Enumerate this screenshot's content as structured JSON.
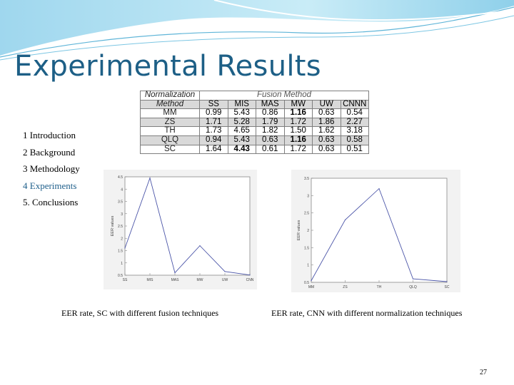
{
  "slide": {
    "title": "Experimental Results",
    "page_number": "27"
  },
  "outline": [
    {
      "label": "1 Introduction",
      "active": false
    },
    {
      "label": "2 Background",
      "active": false
    },
    {
      "label": "3 Methodology",
      "active": false
    },
    {
      "label": "4 Experiments",
      "active": true
    },
    {
      "label": "5. Conclusions",
      "active": false
    }
  ],
  "table": {
    "corner_top": "Normalization",
    "corner_bottom": "Method",
    "group_header": "Fusion Method",
    "columns": [
      "SS",
      "MIS",
      "MAS",
      "MW",
      "UW",
      "CNNN"
    ],
    "rows": [
      {
        "method": "MM",
        "values": [
          "0.99",
          "5.43",
          "0.86",
          "1.16",
          "0.63",
          "0.54"
        ],
        "bold": [
          false,
          false,
          false,
          true,
          false,
          false
        ]
      },
      {
        "method": "ZS",
        "values": [
          "1.71",
          "5.28",
          "1.79",
          "1.72",
          "1.86",
          "2.27"
        ],
        "bold": [
          false,
          false,
          false,
          false,
          false,
          false
        ]
      },
      {
        "method": "TH",
        "values": [
          "1.73",
          "4.65",
          "1.82",
          "1.50",
          "1.62",
          "3.18"
        ],
        "bold": [
          false,
          false,
          false,
          false,
          false,
          false
        ]
      },
      {
        "method": "QLQ",
        "values": [
          "0.94",
          "5.43",
          "0.63",
          "1.16",
          "0.63",
          "0.58"
        ],
        "bold": [
          false,
          false,
          false,
          true,
          false,
          false
        ]
      },
      {
        "method": "SC",
        "values": [
          "1.64",
          "4.43",
          "0.61",
          "1.72",
          "0.63",
          "0.51"
        ],
        "bold": [
          false,
          true,
          false,
          false,
          false,
          false
        ]
      }
    ]
  },
  "chart_data": [
    {
      "type": "line",
      "categories": [
        "SS",
        "MIS",
        "MAS",
        "MW",
        "UW",
        "CNN"
      ],
      "values": [
        1.6,
        4.45,
        0.6,
        1.7,
        0.65,
        0.51
      ],
      "ylabel": "EER values",
      "ylim": [
        0.5,
        4.5
      ],
      "yticks": [
        "0.5",
        "1",
        "1.5",
        "2",
        "2.5",
        "3",
        "3.5",
        "4",
        "4.5"
      ],
      "caption": "EER rate, SC with different fusion techniques",
      "line_color": "#4b55a8"
    },
    {
      "type": "line",
      "categories": [
        "MM",
        "ZS",
        "TH",
        "QLQ",
        "SC"
      ],
      "values": [
        0.55,
        2.3,
        3.2,
        0.6,
        0.52
      ],
      "ylabel": "EER values",
      "ylim": [
        0.5,
        3.5
      ],
      "yticks": [
        "0.5",
        "1",
        "1.5",
        "2",
        "2.5",
        "3",
        "3.5"
      ],
      "caption": "EER rate, CNN with different normalization techniques",
      "line_color": "#4b55a8"
    }
  ]
}
